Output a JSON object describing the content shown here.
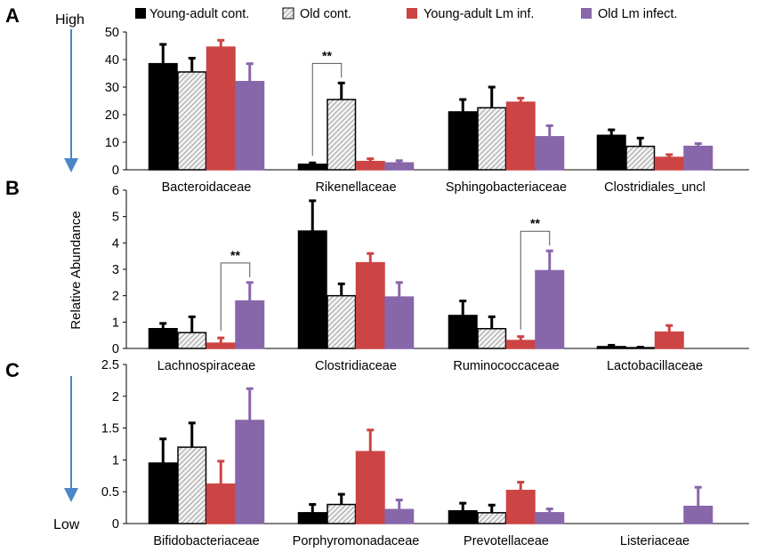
{
  "legend": {
    "entries": [
      {
        "label": "Young-adult  cont.",
        "color": "#000000",
        "pattern": "solid"
      },
      {
        "label": "Old cont.",
        "color": "#d0d0d0",
        "pattern": "hatch"
      },
      {
        "label": "Young-adult  Lm inf.",
        "color": "#cc4444",
        "pattern": "solid"
      },
      {
        "label": "Old Lm infect.",
        "color": "#8866aa",
        "pattern": "solid"
      }
    ]
  },
  "scale": {
    "high_label": "High",
    "low_label": "Low",
    "arrow_color": "#4a86c8"
  },
  "y_axis_title": "Relative Abundance",
  "chart_data": [
    {
      "type": "bar",
      "panel_label": "A",
      "title": "",
      "xlabel": "",
      "ylabel": "Relative Abundance",
      "ylim": [
        0,
        50
      ],
      "yticks": [
        0,
        10,
        20,
        30,
        40,
        50
      ],
      "ytick_labels": [
        "0",
        "10",
        "20",
        "30",
        "40",
        "50"
      ],
      "categories": [
        "Bacteroidaceae",
        "Rikenellaceae",
        "Sphingobacteriaceae",
        "Clostridiales_uncl"
      ],
      "series": [
        {
          "name": "Young-adult  cont.",
          "values": [
            38.5,
            2.0,
            21.0,
            12.5
          ],
          "errors": [
            7.0,
            0.5,
            4.5,
            2.0
          ]
        },
        {
          "name": "Old cont.",
          "values": [
            35.5,
            25.5,
            22.5,
            8.5
          ],
          "errors": [
            5.0,
            6.0,
            7.5,
            3.0
          ]
        },
        {
          "name": "Young-adult  Lm inf.",
          "values": [
            44.5,
            3.0,
            24.5,
            4.5
          ],
          "errors": [
            2.5,
            1.0,
            1.5,
            1.0
          ]
        },
        {
          "name": "Old Lm infect.",
          "values": [
            32.0,
            2.5,
            12.0,
            8.5
          ],
          "errors": [
            6.5,
            0.8,
            4.0,
            1.0
          ]
        }
      ],
      "annotations": [
        {
          "text": "**",
          "category": "Rikenellaceae",
          "from_series": 0,
          "to_series": 1
        }
      ]
    },
    {
      "type": "bar",
      "panel_label": "B",
      "title": "",
      "xlabel": "",
      "ylabel": "Relative Abundance",
      "ylim": [
        0,
        6
      ],
      "yticks": [
        0,
        1,
        2,
        3,
        4,
        5,
        6
      ],
      "ytick_labels": [
        "0",
        "1",
        "2",
        "3",
        "4",
        "5",
        "6"
      ],
      "categories": [
        "Lachnospiraceae",
        "Clostridiaceae",
        "Ruminococcaceae",
        "Lactobacillaceae"
      ],
      "series": [
        {
          "name": "Young-adult  cont.",
          "values": [
            0.75,
            4.45,
            1.25,
            0.07
          ],
          "errors": [
            0.2,
            1.15,
            0.55,
            0.05
          ]
        },
        {
          "name": "Old cont.",
          "values": [
            0.6,
            2.0,
            0.75,
            0.03
          ],
          "errors": [
            0.6,
            0.45,
            0.45,
            0.02
          ]
        },
        {
          "name": "Young-adult  Lm inf.",
          "values": [
            0.2,
            3.25,
            0.3,
            0.62
          ],
          "errors": [
            0.2,
            0.35,
            0.15,
            0.25
          ]
        },
        {
          "name": "Old Lm infect.",
          "values": [
            1.8,
            1.95,
            2.95,
            0.0
          ],
          "errors": [
            0.7,
            0.55,
            0.75,
            0.0
          ]
        }
      ],
      "annotations": [
        {
          "text": "**",
          "category": "Lachnospiraceae",
          "from_series": 2,
          "to_series": 3
        },
        {
          "text": "**",
          "category": "Ruminococcaceae",
          "from_series": 2,
          "to_series": 3
        }
      ]
    },
    {
      "type": "bar",
      "panel_label": "C",
      "title": "",
      "xlabel": "",
      "ylabel": "Relative Abundance",
      "ylim": [
        0,
        2.5
      ],
      "yticks": [
        0,
        0.5,
        1,
        1.5,
        2,
        2.5
      ],
      "ytick_labels": [
        "0",
        "0.5",
        "1",
        "1.5",
        "2",
        "2.5"
      ],
      "categories": [
        "Bifidobacteriaceae",
        "Porphyromonadaceae",
        "Prevotellaceae",
        "Listeriaceae"
      ],
      "series": [
        {
          "name": "Young-adult  cont.",
          "values": [
            0.95,
            0.17,
            0.2,
            0.0
          ],
          "errors": [
            0.38,
            0.13,
            0.12,
            0.0
          ]
        },
        {
          "name": "Old cont.",
          "values": [
            1.2,
            0.3,
            0.17,
            0.0
          ],
          "errors": [
            0.38,
            0.16,
            0.12,
            0.0
          ]
        },
        {
          "name": "Young-adult  Lm inf.",
          "values": [
            0.62,
            1.13,
            0.52,
            0.0
          ],
          "errors": [
            0.36,
            0.34,
            0.13,
            0.0
          ]
        },
        {
          "name": "Old Lm infect.",
          "values": [
            1.62,
            0.22,
            0.17,
            0.27
          ],
          "errors": [
            0.5,
            0.15,
            0.06,
            0.3
          ]
        }
      ],
      "annotations": []
    }
  ]
}
